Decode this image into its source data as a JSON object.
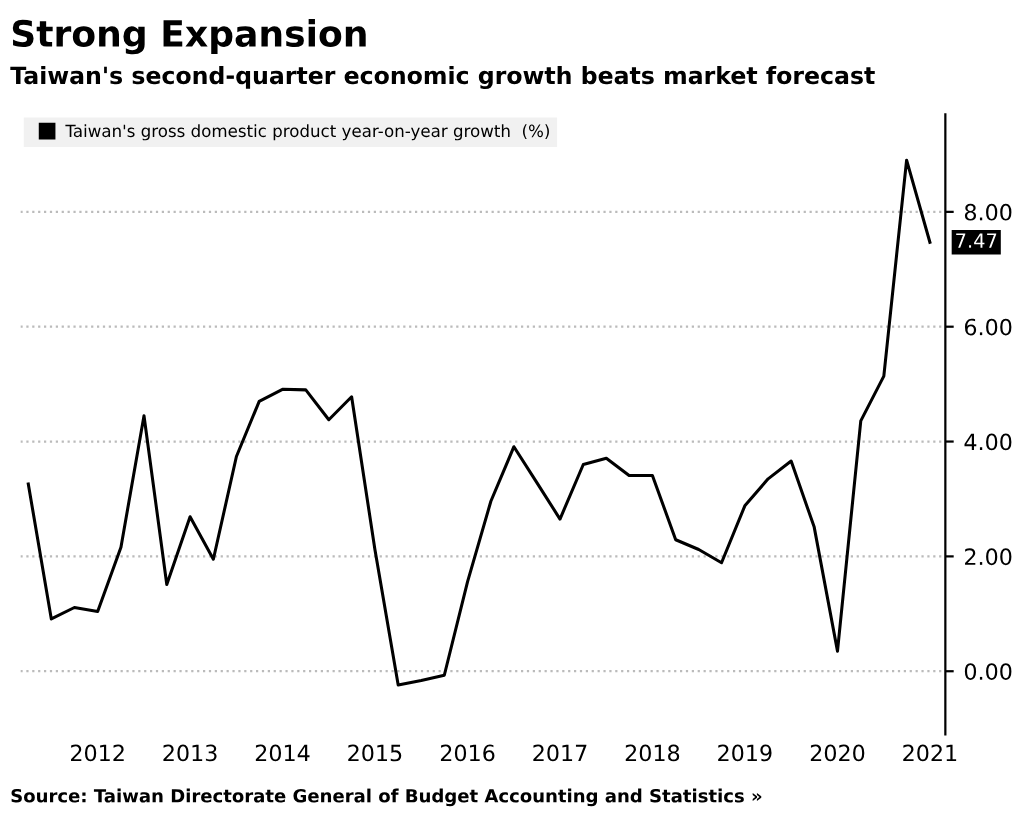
{
  "chart_data": {
    "type": "line",
    "title": "Strong Expansion",
    "subtitle": "Taiwan's second-quarter economic growth beats market forecast",
    "x": [
      "2011-09",
      "2011-12",
      "2012-03",
      "2012-06",
      "2012-09",
      "2012-12",
      "2013-03",
      "2013-06",
      "2013-09",
      "2013-12",
      "2014-03",
      "2014-06",
      "2014-09",
      "2014-12",
      "2015-03",
      "2015-06",
      "2015-09",
      "2015-12",
      "2016-03",
      "2016-06",
      "2016-09",
      "2016-12",
      "2017-03",
      "2017-06",
      "2017-09",
      "2017-12",
      "2018-03",
      "2018-06",
      "2018-09",
      "2018-12",
      "2019-03",
      "2019-06",
      "2019-09",
      "2019-12",
      "2020-03",
      "2020-06",
      "2020-09",
      "2020-12",
      "2021-03",
      "2021-06"
    ],
    "series": [
      {
        "name": "Taiwan's gross domestic product year-on-year growth  (%)",
        "color": "#000000",
        "values": [
          3.26,
          0.91,
          1.11,
          1.04,
          2.16,
          4.45,
          1.51,
          2.69,
          1.95,
          3.74,
          4.7,
          4.91,
          4.9,
          4.38,
          4.78,
          2.12,
          -0.24,
          -0.16,
          -0.07,
          1.56,
          2.96,
          3.91,
          3.29,
          2.65,
          3.6,
          3.71,
          3.41,
          3.41,
          2.29,
          2.12,
          1.89,
          2.88,
          3.35,
          3.66,
          2.51,
          0.35,
          4.36,
          5.14,
          8.9,
          7.47
        ]
      }
    ],
    "xlim": [
      "2011-08",
      "2021-08"
    ],
    "xticks": [
      {
        "value": "2012-06",
        "label": "2012"
      },
      {
        "value": "2013-06",
        "label": "2013"
      },
      {
        "value": "2014-06",
        "label": "2014"
      },
      {
        "value": "2015-06",
        "label": "2015"
      },
      {
        "value": "2016-06",
        "label": "2016"
      },
      {
        "value": "2017-06",
        "label": "2017"
      },
      {
        "value": "2018-06",
        "label": "2018"
      },
      {
        "value": "2019-06",
        "label": "2019"
      },
      {
        "value": "2020-06",
        "label": "2020"
      },
      {
        "value": "2021-06",
        "label": "2021"
      }
    ],
    "ylim": [
      -1.1,
      9.7
    ],
    "yticks": [
      {
        "value": 0,
        "label": "0.00"
      },
      {
        "value": 2,
        "label": "2.00"
      },
      {
        "value": 4,
        "label": "4.00"
      },
      {
        "value": 6,
        "label": "6.00"
      },
      {
        "value": 8,
        "label": "8.00"
      }
    ],
    "grid": "y",
    "legend": "top left",
    "line_style": "solid",
    "marker": "none",
    "annotations": [
      {
        "text": "7.47",
        "x": "2021-06",
        "y": 7.47
      },
      "Source: Taiwan Directorate General of Budget Accounting and Statistics »"
    ]
  }
}
